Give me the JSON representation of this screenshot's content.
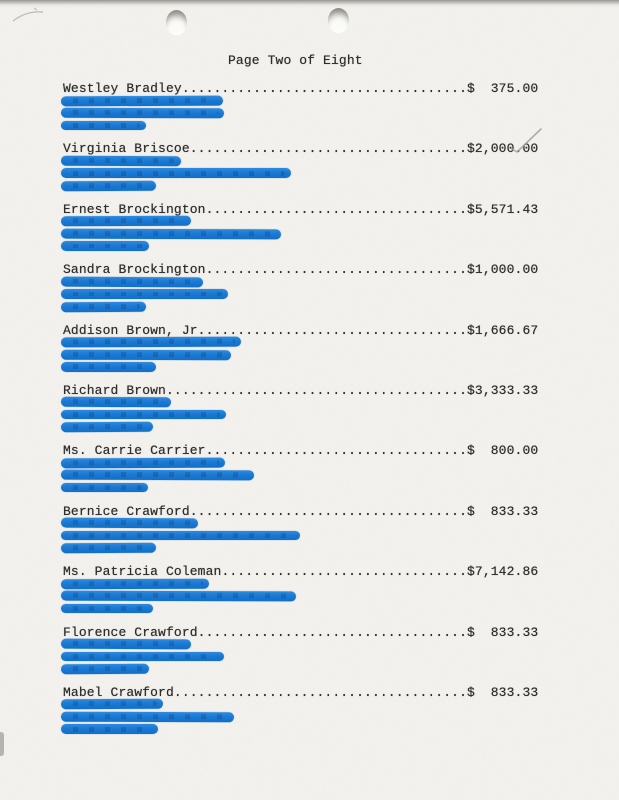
{
  "page": {
    "title": "Page Two of Eight"
  },
  "leader": {
    "total_chars": 60,
    "dot_char": "."
  },
  "entries": [
    {
      "name": "Westley Bradley",
      "amount": "$  375.00",
      "redactions": [
        162,
        163,
        85
      ]
    },
    {
      "name": "Virginia Briscoe",
      "amount": "$2,000.00",
      "redactions": [
        120,
        230,
        95
      ],
      "annotation": "pencil-check"
    },
    {
      "name": "Ernest Brockington",
      "amount": "$5,571.43",
      "redactions": [
        130,
        220,
        88
      ]
    },
    {
      "name": "Sandra Brockington",
      "amount": "$1,000.00",
      "redactions": [
        142,
        167,
        85
      ]
    },
    {
      "name": "Addison Brown, Jr",
      "amount": "$1,666.67",
      "redactions": [
        180,
        170,
        95
      ]
    },
    {
      "name": "Richard Brown",
      "amount": "$3,333.33",
      "redactions": [
        110,
        165,
        92
      ]
    },
    {
      "name": "Ms. Carrie Carrier",
      "amount": "$  800.00",
      "redactions": [
        164,
        193,
        87
      ]
    },
    {
      "name": "Bernice Crawford",
      "amount": "$  833.33",
      "redactions": [
        137,
        239,
        95
      ]
    },
    {
      "name": "Ms. Patricia Coleman",
      "amount": "$7,142.86",
      "redactions": [
        148,
        235,
        92
      ]
    },
    {
      "name": "Florence Crawford",
      "amount": "$  833.33",
      "redactions": [
        130,
        163,
        88
      ]
    },
    {
      "name": "Mabel Crawford",
      "amount": "$  833.33",
      "redactions": [
        102,
        173,
        97
      ]
    }
  ],
  "colors": {
    "paper": "#f1f0ec",
    "ink": "#2e2d2b",
    "redaction_blue": "#1a79d4",
    "pencil_gray": "#a3a19b"
  }
}
